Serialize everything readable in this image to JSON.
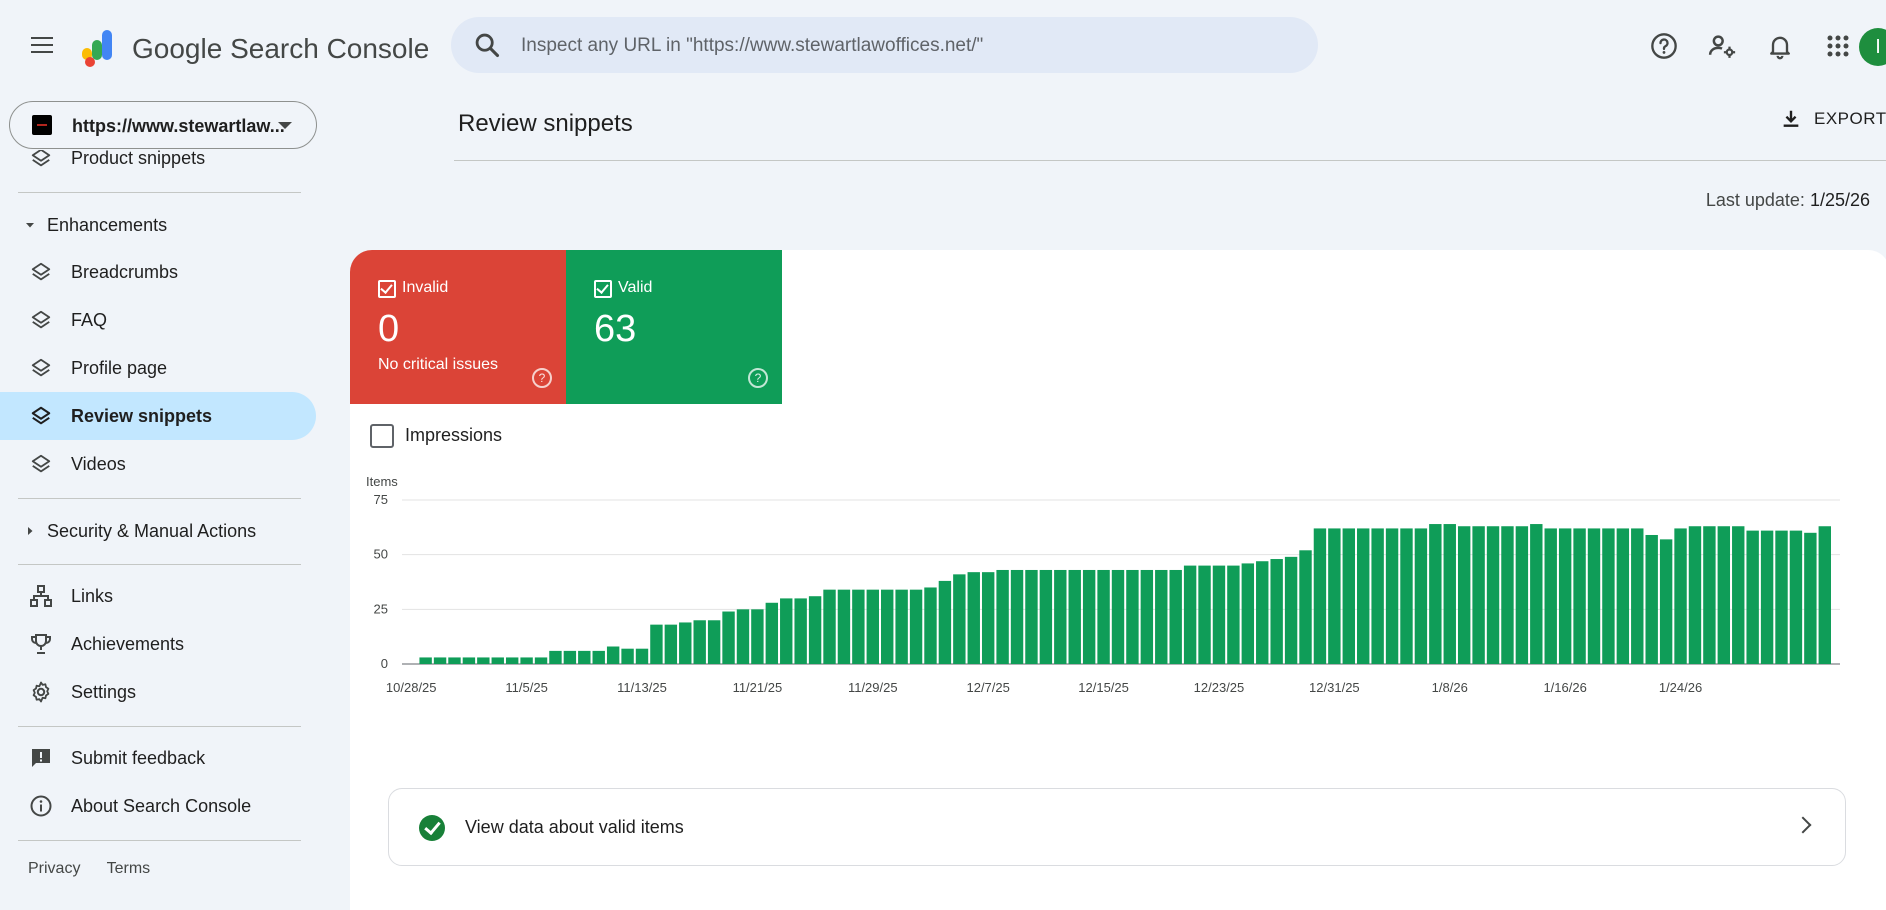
{
  "header": {
    "menu_icon": "hamburger-icon",
    "app_title": "Google Search Console",
    "search_placeholder": "Inspect any URL in \"https://www.stewartlawoffices.net/\"",
    "icons": [
      "help-icon",
      "manage-users-icon",
      "bell-icon",
      "apps-icon"
    ],
    "avatar_letter": "I",
    "avatar_color": "#1e8e3e"
  },
  "property": {
    "url": "https://www.stewartlaw..."
  },
  "sidebar": {
    "partial_item": "Product snippets",
    "enhancements_label": "Enhancements",
    "enhancement_items": [
      {
        "label": "Breadcrumbs",
        "icon": "layers-icon"
      },
      {
        "label": "FAQ",
        "icon": "layers-icon"
      },
      {
        "label": "Profile page",
        "icon": "layers-icon"
      },
      {
        "label": "Review snippets",
        "icon": "layers-icon",
        "active": true
      },
      {
        "label": "Videos",
        "icon": "layers-icon"
      }
    ],
    "security_label": "Security & Manual Actions",
    "links_label": "Links",
    "achievements_label": "Achievements",
    "settings_label": "Settings",
    "feedback_label": "Submit feedback",
    "about_label": "About Search Console",
    "privacy_label": "Privacy",
    "terms_label": "Terms"
  },
  "main": {
    "title": "Review snippets",
    "export_label": "EXPORT",
    "last_update_label": "Last update:",
    "last_update_value": "1/25/26",
    "invalid": {
      "label": "Invalid",
      "value": "0",
      "sub": "No critical issues",
      "color": "#db4437"
    },
    "valid": {
      "label": "Valid",
      "value": "63",
      "color": "#0f9d58"
    },
    "impressions_label": "Impressions",
    "view_valid_label": "View data about valid items"
  },
  "chart_data": {
    "type": "bar",
    "ylabel": "Items",
    "ylim": [
      0,
      75
    ],
    "yticks": [
      0,
      25,
      50,
      75
    ],
    "grid": true,
    "color": "#0f9d58",
    "x_tick_labels": [
      "10/28/25",
      "11/5/25",
      "11/13/25",
      "11/21/25",
      "11/29/25",
      "12/7/25",
      "12/15/25",
      "12/23/25",
      "12/31/25",
      "1/8/26",
      "1/16/26",
      "1/24/26"
    ],
    "x_start": "10/28/25",
    "x_end": "1/25/26",
    "values": [
      0,
      3,
      3,
      3,
      3,
      3,
      3,
      3,
      3,
      3,
      6,
      6,
      6,
      6,
      8,
      7,
      7,
      18,
      18,
      19,
      20,
      20,
      24,
      25,
      25,
      28,
      30,
      30,
      31,
      34,
      34,
      34,
      34,
      34,
      34,
      34,
      35,
      38,
      41,
      42,
      42,
      43,
      43,
      43,
      43,
      43,
      43,
      43,
      43,
      43,
      43,
      43,
      43,
      43,
      45,
      45,
      45,
      45,
      46,
      47,
      48,
      49,
      52,
      62,
      62,
      62,
      62,
      62,
      62,
      62,
      62,
      64,
      64,
      63,
      63,
      63,
      63,
      63,
      64,
      62,
      62,
      62,
      62,
      62,
      62,
      62,
      59,
      57,
      62,
      63,
      63,
      63,
      63,
      61,
      61,
      61,
      61,
      60,
      63
    ]
  }
}
